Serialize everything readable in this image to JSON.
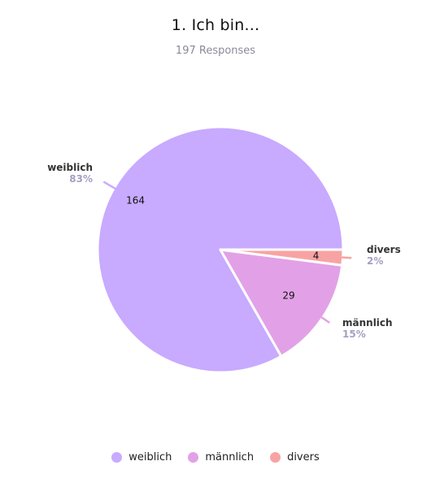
{
  "chart_data": {
    "type": "pie",
    "title": "1. Ich bin...",
    "subtitle": "197 Responses",
    "legend_position": "bottom",
    "series": [
      {
        "name": "",
        "slices": [
          {
            "label": "weiblich",
            "value": 164,
            "percent": "83%",
            "color": "#c8aaff"
          },
          {
            "label": "männlich",
            "value": 29,
            "percent": "15%",
            "color": "#e2a1e6"
          },
          {
            "label": "divers",
            "value": 4,
            "percent": "2%",
            "color": "#f8a3a3"
          }
        ]
      }
    ]
  }
}
